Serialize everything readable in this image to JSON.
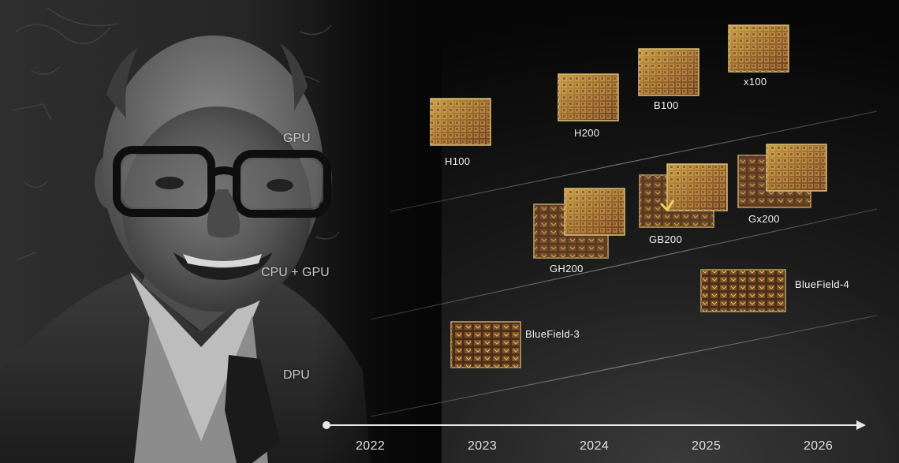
{
  "categories": {
    "gpu": "GPU",
    "cpu_gpu": "CPU + GPU",
    "dpu": "DPU"
  },
  "chips": {
    "h100": "H100",
    "h200": "H200",
    "b100": "B100",
    "x100": "x100",
    "gh200": "GH200",
    "gb200": "GB200",
    "gx200": "Gx200",
    "bluefield3": "BlueField-3",
    "bluefield4": "BlueField-4"
  },
  "timeline": {
    "years": [
      "2022",
      "2023",
      "2024",
      "2025",
      "2026"
    ]
  },
  "colors": {
    "background": "#060606",
    "chip_gold": "#b88a3c",
    "chip_red": "#7a3520",
    "timeline": "#e8e8e8"
  },
  "icons": {
    "gpu_die": "gpu-chip-icon",
    "superchip": "superchip-icon",
    "dpu_die": "dpu-chip-icon"
  }
}
